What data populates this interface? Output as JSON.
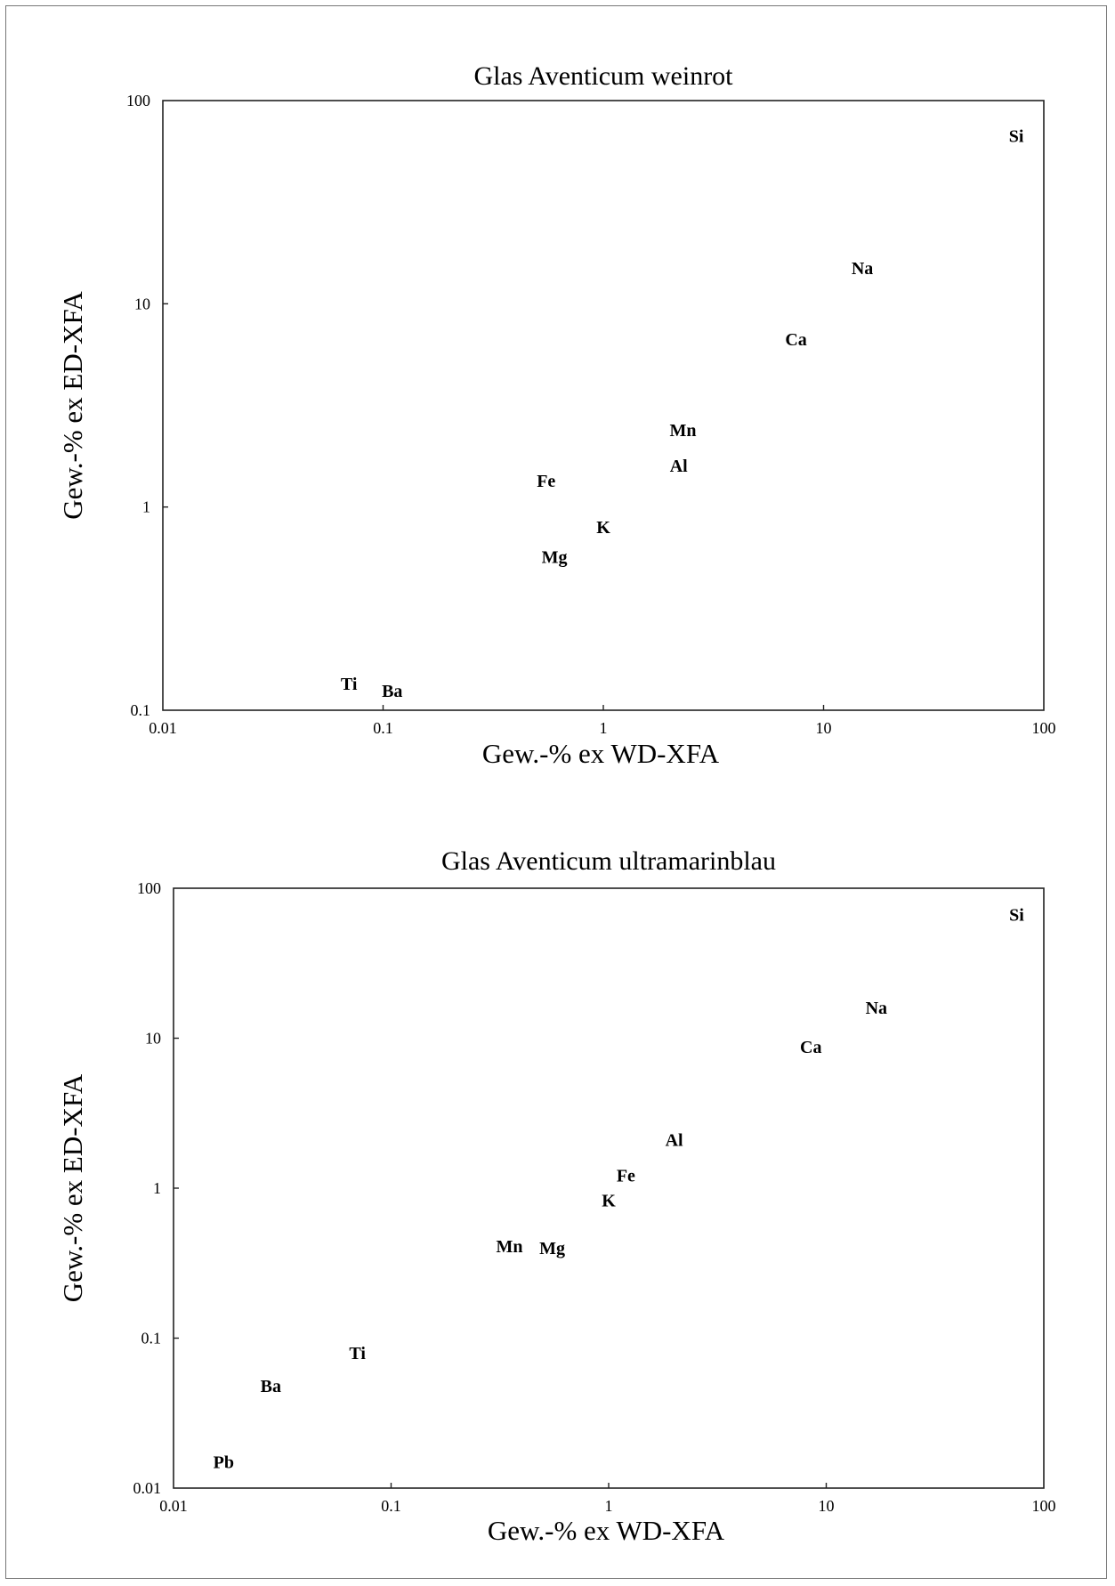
{
  "chart_data": [
    {
      "type": "scatter",
      "title": "Glas Aventicum weinrot",
      "xlabel": "Gew.-% ex WD-XFA",
      "ylabel": "Gew.-% ex ED-XFA",
      "xscale": "log",
      "yscale": "log",
      "xlim": [
        0.01,
        100
      ],
      "ylim": [
        0.1,
        100
      ],
      "xticks": [
        "0.01",
        "0.1",
        "1",
        "10",
        "100"
      ],
      "yticks": [
        "0.1",
        "1",
        "10",
        "100"
      ],
      "grid": false,
      "marker": "element label",
      "points": [
        {
          "label": "Si",
          "x": 75,
          "y": 67
        },
        {
          "label": "Na",
          "x": 15,
          "y": 15
        },
        {
          "label": "Ca",
          "x": 7.5,
          "y": 6.7
        },
        {
          "label": "Mn",
          "x": 2.3,
          "y": 2.4
        },
        {
          "label": "Al",
          "x": 2.2,
          "y": 1.6
        },
        {
          "label": "Fe",
          "x": 0.55,
          "y": 1.35
        },
        {
          "label": "K",
          "x": 1.0,
          "y": 0.8
        },
        {
          "label": "Mg",
          "x": 0.6,
          "y": 0.57
        },
        {
          "label": "Ti",
          "x": 0.07,
          "y": 0.135
        },
        {
          "label": "Ba",
          "x": 0.11,
          "y": 0.125
        }
      ]
    },
    {
      "type": "scatter",
      "title": "Glas Aventicum ultramarinblau",
      "xlabel": "Gew.-% ex WD-XFA",
      "ylabel": "Gew.-% ex ED-XFA",
      "xscale": "log",
      "yscale": "log",
      "xlim": [
        0.01,
        100
      ],
      "ylim": [
        0.01,
        100
      ],
      "xticks": [
        "0.01",
        "0.1",
        "1",
        "10",
        "100"
      ],
      "yticks": [
        "0.01",
        "0.1",
        "1",
        "10",
        "100"
      ],
      "grid": false,
      "marker": "element label",
      "points": [
        {
          "label": "Si",
          "x": 75,
          "y": 67
        },
        {
          "label": "Na",
          "x": 17,
          "y": 16
        },
        {
          "label": "Ca",
          "x": 8.5,
          "y": 8.8
        },
        {
          "label": "Al",
          "x": 2.0,
          "y": 2.1
        },
        {
          "label": "Fe",
          "x": 1.2,
          "y": 1.22
        },
        {
          "label": "K",
          "x": 1.0,
          "y": 0.83
        },
        {
          "label": "Mn",
          "x": 0.35,
          "y": 0.41
        },
        {
          "label": "Mg",
          "x": 0.55,
          "y": 0.4
        },
        {
          "label": "Ti",
          "x": 0.07,
          "y": 0.08
        },
        {
          "label": "Ba",
          "x": 0.028,
          "y": 0.048
        },
        {
          "label": "Pb",
          "x": 0.017,
          "y": 0.015
        }
      ]
    }
  ]
}
